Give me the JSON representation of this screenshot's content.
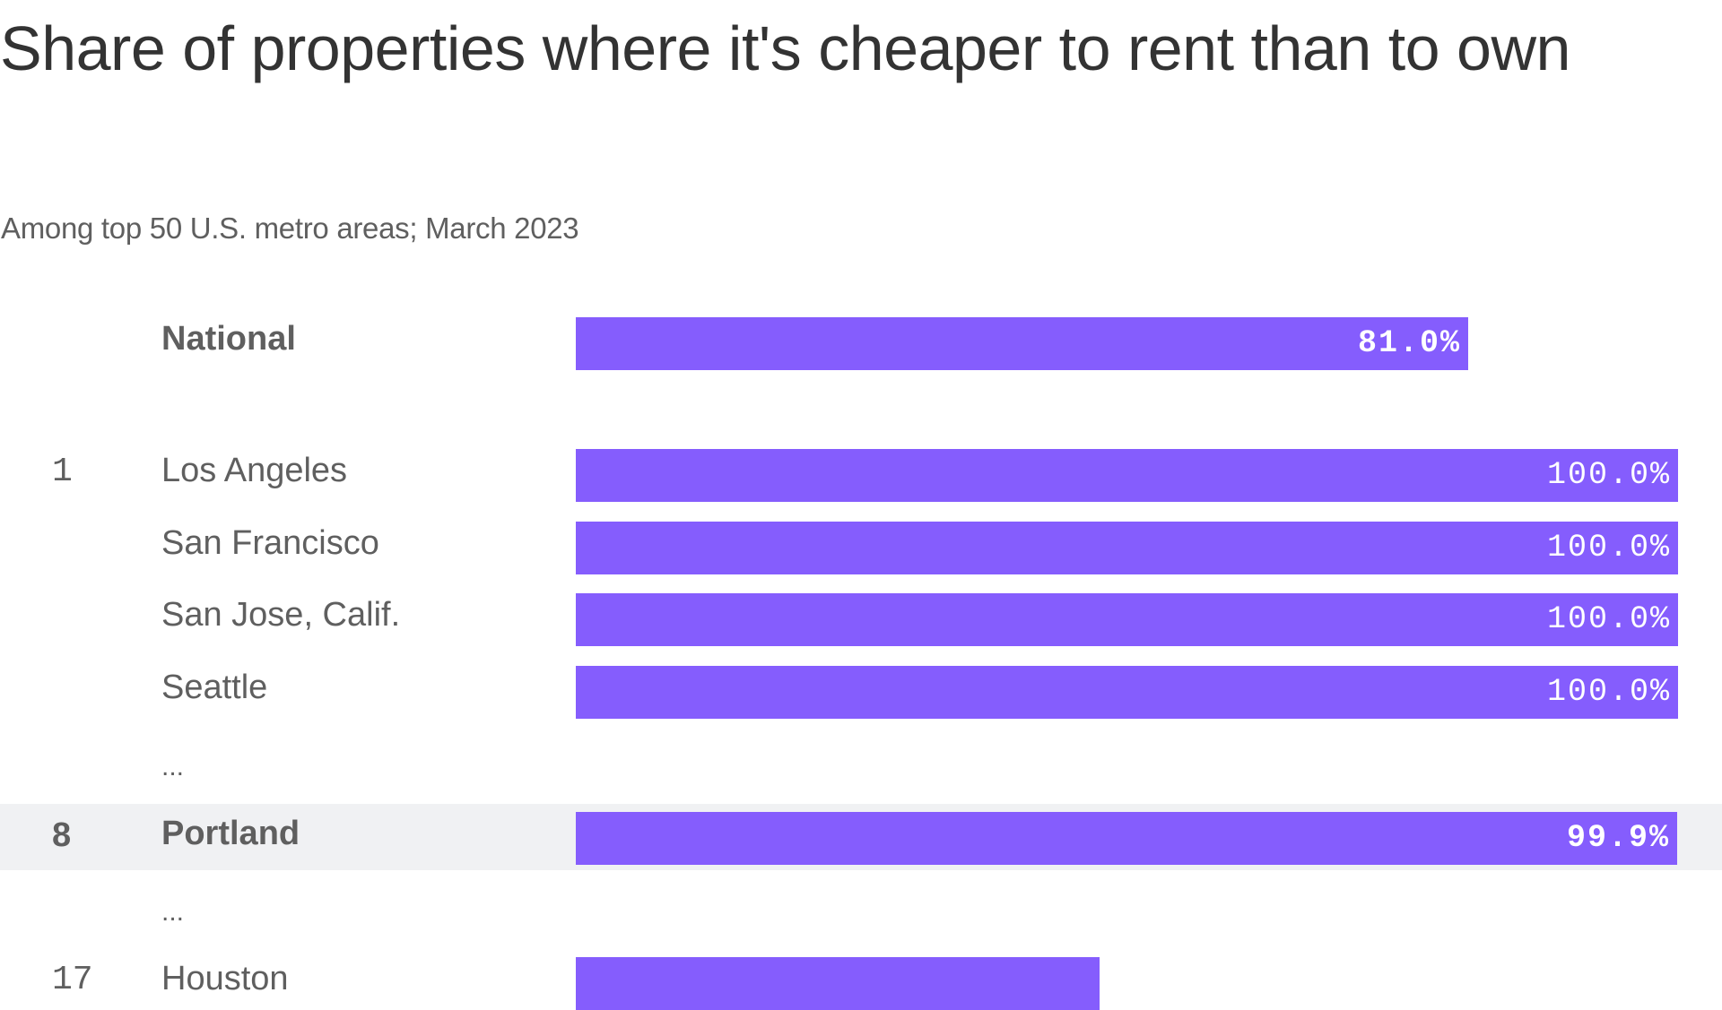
{
  "header": {
    "title": "Share of properties where it's cheaper to rent than to own",
    "subtitle": "Among top 50 U.S. metro areas; March 2023"
  },
  "colors": {
    "bar": "#855dfd",
    "highlight_row": "#f0f1f3",
    "text": "#5f5f5f",
    "title": "#333333",
    "bar_label": "#ffffff"
  },
  "ellipsis": "...",
  "chart_data": {
    "type": "bar",
    "orientation": "horizontal",
    "title": "Share of properties where it's cheaper to rent than to own",
    "subtitle": "Among top 50 U.S. metro areas; March 2023",
    "xlabel": "",
    "ylabel": "",
    "xlim": [
      0,
      100
    ],
    "grid": false,
    "legend": "none",
    "value_format": "percent_1dp",
    "rows": [
      {
        "kind": "bar",
        "rank": "",
        "name": "National",
        "value": 81.0,
        "label": "81.0%",
        "bold": true,
        "highlight": false
      },
      {
        "kind": "spacer"
      },
      {
        "kind": "bar",
        "rank": "1",
        "name": "Los Angeles",
        "value": 100.0,
        "label": "100.0%",
        "bold": false,
        "highlight": false
      },
      {
        "kind": "bar",
        "rank": "",
        "name": "San Francisco",
        "value": 100.0,
        "label": "100.0%",
        "bold": false,
        "highlight": false
      },
      {
        "kind": "bar",
        "rank": "",
        "name": "San Jose, Calif.",
        "value": 100.0,
        "label": "100.0%",
        "bold": false,
        "highlight": false
      },
      {
        "kind": "bar",
        "rank": "",
        "name": "Seattle",
        "value": 100.0,
        "label": "100.0%",
        "bold": false,
        "highlight": false
      },
      {
        "kind": "ellipsis"
      },
      {
        "kind": "bar",
        "rank": "8",
        "name": "Portland",
        "value": 99.9,
        "label": "99.9%",
        "bold": true,
        "highlight": true
      },
      {
        "kind": "ellipsis"
      },
      {
        "kind": "bar",
        "rank": "17",
        "name": "Houston",
        "value": 47.5,
        "label": "",
        "bold": false,
        "highlight": false,
        "partially_visible": true
      }
    ]
  }
}
